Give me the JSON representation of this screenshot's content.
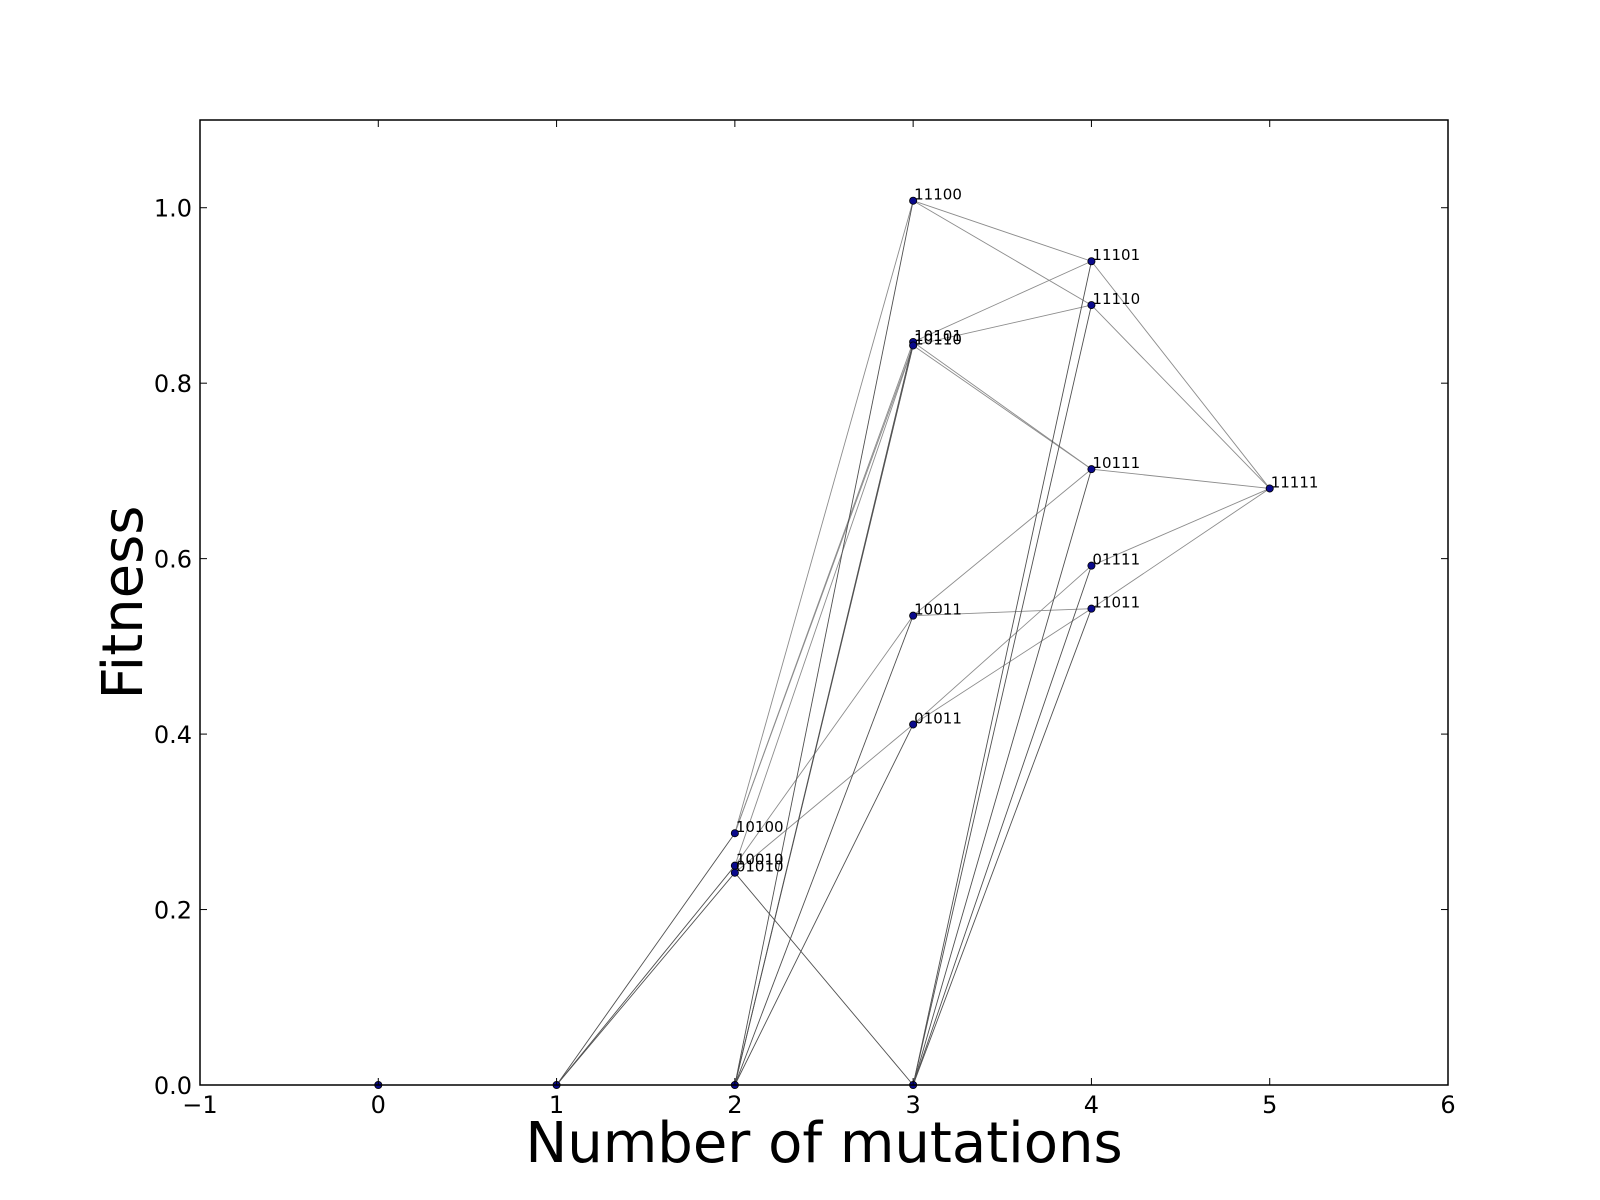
{
  "chart_data": {
    "type": "scatter",
    "title": "",
    "xlabel": "Number of mutations",
    "ylabel": "Fitness",
    "xlim": [
      -1,
      6
    ],
    "ylim": [
      0,
      1.1
    ],
    "xticks": [
      -1,
      0,
      1,
      2,
      3,
      4,
      5,
      6
    ],
    "xtick_labels": [
      "−1",
      "0",
      "1",
      "2",
      "3",
      "4",
      "5",
      "6"
    ],
    "yticks": [
      0.0,
      0.2,
      0.4,
      0.6,
      0.8,
      1.0
    ],
    "ytick_labels": [
      "0.0",
      "0.2",
      "0.4",
      "0.6",
      "0.8",
      "1.0"
    ],
    "grid": false,
    "colors": {
      "point": "#0a0a8c",
      "edge_light": "#8c8c8c",
      "edge_dark": "#505050",
      "axis": "#000000"
    },
    "points": [
      {
        "id": "p0",
        "label": "",
        "x": 0,
        "y": 0.0
      },
      {
        "id": "p1",
        "label": "",
        "x": 1,
        "y": 0.0
      },
      {
        "id": "p2z",
        "label": "",
        "x": 2,
        "y": 0.0
      },
      {
        "id": "10100",
        "label": "10100",
        "x": 2,
        "y": 0.287
      },
      {
        "id": "10010",
        "label": "10010",
        "x": 2,
        "y": 0.25
      },
      {
        "id": "01010",
        "label": "01010",
        "x": 2,
        "y": 0.242
      },
      {
        "id": "p3z",
        "label": "",
        "x": 3,
        "y": 0.0
      },
      {
        "id": "11100",
        "label": "11100",
        "x": 3,
        "y": 1.008
      },
      {
        "id": "10101",
        "label": "10101",
        "x": 3,
        "y": 0.847
      },
      {
        "id": "10110",
        "label": "10110",
        "x": 3,
        "y": 0.843
      },
      {
        "id": "10011",
        "label": "10011",
        "x": 3,
        "y": 0.535
      },
      {
        "id": "01011",
        "label": "01011",
        "x": 3,
        "y": 0.411
      },
      {
        "id": "11101",
        "label": "11101",
        "x": 4,
        "y": 0.939
      },
      {
        "id": "11110",
        "label": "11110",
        "x": 4,
        "y": 0.889
      },
      {
        "id": "10111",
        "label": "10111",
        "x": 4,
        "y": 0.702
      },
      {
        "id": "01111",
        "label": "01111",
        "x": 4,
        "y": 0.592
      },
      {
        "id": "11011",
        "label": "11011",
        "x": 4,
        "y": 0.543
      },
      {
        "id": "11111",
        "label": "11111",
        "x": 5,
        "y": 0.68
      }
    ],
    "edges": [
      [
        "p1",
        "10100"
      ],
      [
        "p1",
        "10010"
      ],
      [
        "p1",
        "01010"
      ],
      [
        "10100",
        "11100"
      ],
      [
        "10100",
        "10101"
      ],
      [
        "10100",
        "10110"
      ],
      [
        "10010",
        "10110"
      ],
      [
        "10010",
        "10011"
      ],
      [
        "01010",
        "p3z"
      ],
      [
        "01010",
        "01011"
      ],
      [
        "p2z",
        "11100"
      ],
      [
        "p2z",
        "10101"
      ],
      [
        "p2z",
        "10110"
      ],
      [
        "p2z",
        "10011"
      ],
      [
        "p2z",
        "01011"
      ],
      [
        "11100",
        "11101"
      ],
      [
        "11100",
        "11110"
      ],
      [
        "10101",
        "11101"
      ],
      [
        "10101",
        "10111"
      ],
      [
        "10110",
        "11110"
      ],
      [
        "10110",
        "10111"
      ],
      [
        "10011",
        "10111"
      ],
      [
        "10011",
        "11011"
      ],
      [
        "01011",
        "01111"
      ],
      [
        "01011",
        "11011"
      ],
      [
        "p3z",
        "11101"
      ],
      [
        "p3z",
        "11110"
      ],
      [
        "p3z",
        "10111"
      ],
      [
        "p3z",
        "01111"
      ],
      [
        "p3z",
        "11011"
      ],
      [
        "11101",
        "11111"
      ],
      [
        "11110",
        "11111"
      ],
      [
        "10111",
        "11111"
      ],
      [
        "01111",
        "11111"
      ],
      [
        "11011",
        "11111"
      ]
    ]
  }
}
